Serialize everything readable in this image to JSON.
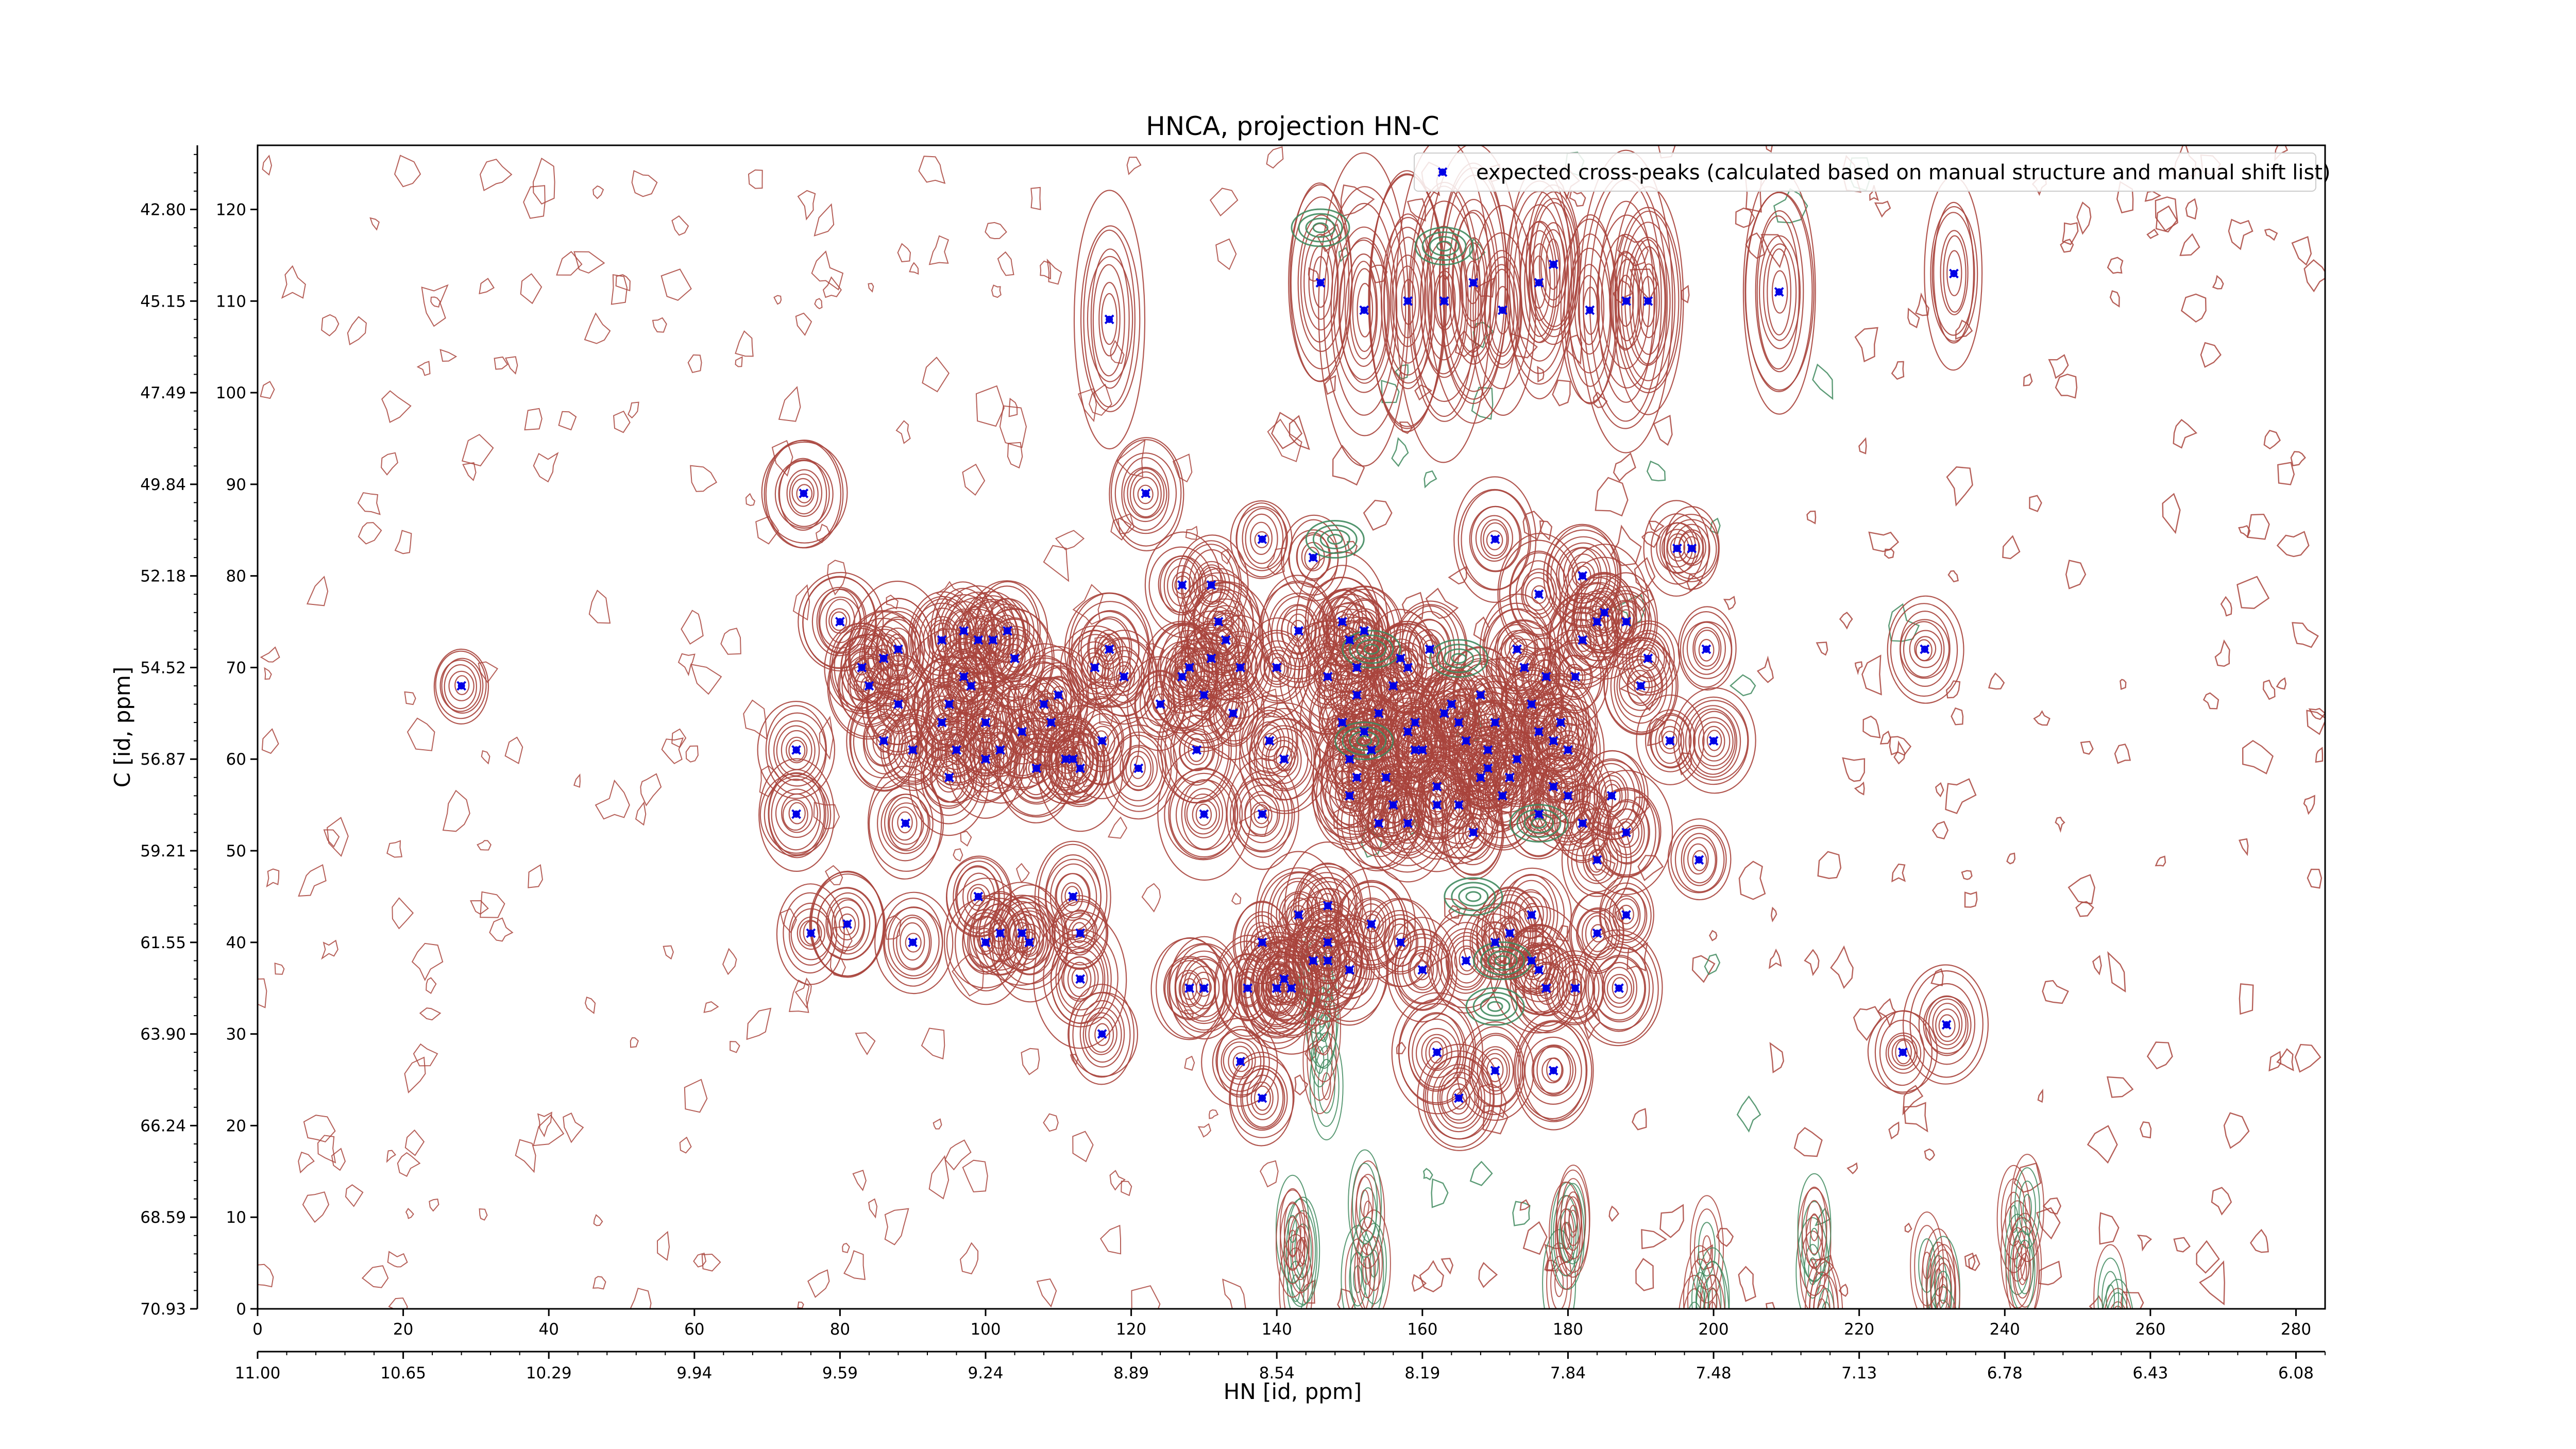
{
  "chart_data": {
    "type": "scatter",
    "title": "HNCA, projection HN-C",
    "xlabel": "HN [id, ppm]",
    "ylabel": "C [id, ppm]",
    "index_x_ticks": [
      "0",
      "20",
      "40",
      "60",
      "80",
      "100",
      "120",
      "140",
      "160",
      "180",
      "200",
      "220",
      "240",
      "260",
      "280"
    ],
    "index_y_ticks": [
      "0",
      "10",
      "20",
      "30",
      "40",
      "50",
      "60",
      "70",
      "80",
      "90",
      "100",
      "110",
      "120"
    ],
    "ppm_x_ticks": [
      "11.00",
      "10.65",
      "10.29",
      "9.94",
      "9.59",
      "9.24",
      "8.89",
      "8.54",
      "8.19",
      "7.84",
      "7.48",
      "7.13",
      "6.78",
      "6.43",
      "6.08"
    ],
    "ppm_y_ticks": [
      "70.93",
      "68.59",
      "66.24",
      "63.90",
      "61.55",
      "59.21",
      "56.87",
      "54.52",
      "52.18",
      "49.84",
      "47.49",
      "45.15",
      "42.80"
    ],
    "xlim": [
      0,
      284
    ],
    "ylim": [
      0,
      127
    ],
    "legend": {
      "label": "expected cross-peaks (calculated based on manual structure and manual shift list)",
      "location": "top-right"
    },
    "colors": {
      "positive_contour": "#a9443c",
      "negative_contour": "#3f8a5e",
      "peak_marker": "#0000e6"
    },
    "series": [
      {
        "name": "expected cross-peaks (calculated based on manual structure and manual shift list)",
        "points": [
          [
            28,
            68
          ],
          [
            75,
            89
          ],
          [
            80,
            75
          ],
          [
            83,
            70
          ],
          [
            84,
            68
          ],
          [
            86,
            71
          ],
          [
            86,
            62
          ],
          [
            88,
            72
          ],
          [
            88,
            66
          ],
          [
            89,
            53
          ],
          [
            90,
            61
          ],
          [
            74,
            61
          ],
          [
            74,
            54
          ],
          [
            94,
            73
          ],
          [
            94,
            64
          ],
          [
            95,
            66
          ],
          [
            95,
            58
          ],
          [
            96,
            61
          ],
          [
            97,
            74
          ],
          [
            97,
            69
          ],
          [
            98,
            68
          ],
          [
            99,
            73
          ],
          [
            100,
            64
          ],
          [
            100,
            60
          ],
          [
            101,
            73
          ],
          [
            102,
            61
          ],
          [
            103,
            74
          ],
          [
            104,
            71
          ],
          [
            105,
            63
          ],
          [
            107,
            59
          ],
          [
            108,
            66
          ],
          [
            109,
            64
          ],
          [
            110,
            67
          ],
          [
            111,
            60
          ],
          [
            112,
            60
          ],
          [
            113,
            59
          ],
          [
            115,
            70
          ],
          [
            116,
            62
          ],
          [
            117,
            72
          ],
          [
            119,
            69
          ],
          [
            121,
            59
          ],
          [
            124,
            66
          ],
          [
            127,
            69
          ],
          [
            128,
            70
          ],
          [
            130,
            67
          ],
          [
            131,
            79
          ],
          [
            133,
            73
          ],
          [
            135,
            70
          ],
          [
            76,
            41
          ],
          [
            81,
            42
          ],
          [
            90,
            40
          ],
          [
            99,
            45
          ],
          [
            100,
            40
          ],
          [
            102,
            41
          ],
          [
            105,
            41
          ],
          [
            106,
            40
          ],
          [
            112,
            45
          ],
          [
            113,
            41
          ],
          [
            116,
            30
          ],
          [
            117,
            108
          ],
          [
            122,
            89
          ],
          [
            127,
            79
          ],
          [
            129,
            61
          ],
          [
            130,
            54
          ],
          [
            131,
            71
          ],
          [
            132,
            75
          ],
          [
            134,
            65
          ],
          [
            138,
            84
          ],
          [
            138,
            54
          ],
          [
            139,
            62
          ],
          [
            140,
            70
          ],
          [
            141,
            60
          ],
          [
            143,
            74
          ],
          [
            145,
            82
          ],
          [
            147,
            69
          ],
          [
            149,
            75
          ],
          [
            150,
            73
          ],
          [
            151,
            70
          ],
          [
            152,
            74
          ],
          [
            151,
            67
          ],
          [
            152,
            63
          ],
          [
            153,
            61
          ],
          [
            154,
            65
          ],
          [
            156,
            68
          ],
          [
            157,
            71
          ],
          [
            158,
            63
          ],
          [
            158,
            70
          ],
          [
            159,
            64
          ],
          [
            160,
            61
          ],
          [
            161,
            72
          ],
          [
            162,
            55
          ],
          [
            163,
            65
          ],
          [
            164,
            66
          ],
          [
            165,
            64
          ],
          [
            166,
            62
          ],
          [
            168,
            67
          ],
          [
            169,
            61
          ],
          [
            170,
            64
          ],
          [
            171,
            56
          ],
          [
            172,
            58
          ],
          [
            173,
            72
          ],
          [
            174,
            70
          ],
          [
            175,
            66
          ],
          [
            176,
            63
          ],
          [
            177,
            69
          ],
          [
            178,
            57
          ],
          [
            179,
            64
          ],
          [
            180,
            61
          ],
          [
            181,
            69
          ],
          [
            182,
            73
          ],
          [
            184,
            75
          ],
          [
            185,
            76
          ],
          [
            188,
            75
          ],
          [
            191,
            71
          ],
          [
            190,
            68
          ],
          [
            194,
            62
          ],
          [
            195,
            83
          ],
          [
            197,
            83
          ],
          [
            182,
            80
          ],
          [
            176,
            78
          ],
          [
            170,
            84
          ],
          [
            149,
            64
          ],
          [
            150,
            60
          ],
          [
            150,
            56
          ],
          [
            151,
            58
          ],
          [
            154,
            53
          ],
          [
            155,
            58
          ],
          [
            156,
            55
          ],
          [
            158,
            53
          ],
          [
            159,
            61
          ],
          [
            162,
            57
          ],
          [
            165,
            55
          ],
          [
            167,
            52
          ],
          [
            168,
            58
          ],
          [
            169,
            59
          ],
          [
            173,
            60
          ],
          [
            176,
            54
          ],
          [
            178,
            62
          ],
          [
            180,
            56
          ],
          [
            182,
            53
          ],
          [
            184,
            49
          ],
          [
            186,
            56
          ],
          [
            188,
            52
          ],
          [
            198,
            49
          ],
          [
            199,
            72
          ],
          [
            200,
            62
          ],
          [
            146,
            112
          ],
          [
            152,
            109
          ],
          [
            158,
            110
          ],
          [
            163,
            110
          ],
          [
            167,
            112
          ],
          [
            171,
            109
          ],
          [
            176,
            112
          ],
          [
            178,
            114
          ],
          [
            183,
            109
          ],
          [
            188,
            110
          ],
          [
            191,
            110
          ],
          [
            209,
            111
          ],
          [
            233,
            113
          ],
          [
            229,
            72
          ],
          [
            226,
            28
          ],
          [
            232,
            31
          ],
          [
            130,
            35
          ],
          [
            136,
            35
          ],
          [
            140,
            35
          ],
          [
            142,
            35
          ],
          [
            147,
            40
          ],
          [
            150,
            37
          ],
          [
            153,
            42
          ],
          [
            157,
            40
          ],
          [
            160,
            37
          ],
          [
            162,
            28
          ],
          [
            165,
            23
          ],
          [
            166,
            38
          ],
          [
            170,
            40
          ],
          [
            172,
            41
          ],
          [
            175,
            38
          ],
          [
            176,
            37
          ],
          [
            177,
            35
          ],
          [
            178,
            26
          ],
          [
            181,
            35
          ],
          [
            184,
            41
          ],
          [
            187,
            35
          ],
          [
            188,
            43
          ],
          [
            138,
            40
          ],
          [
            141,
            36
          ],
          [
            145,
            38
          ],
          [
            147,
            38
          ],
          [
            128,
            35
          ],
          [
            113,
            36
          ],
          [
            135,
            27
          ],
          [
            138,
            23
          ],
          [
            140,
            35
          ],
          [
            170,
            26
          ],
          [
            143,
            43
          ],
          [
            147,
            44
          ],
          [
            175,
            43
          ]
        ]
      }
    ]
  }
}
